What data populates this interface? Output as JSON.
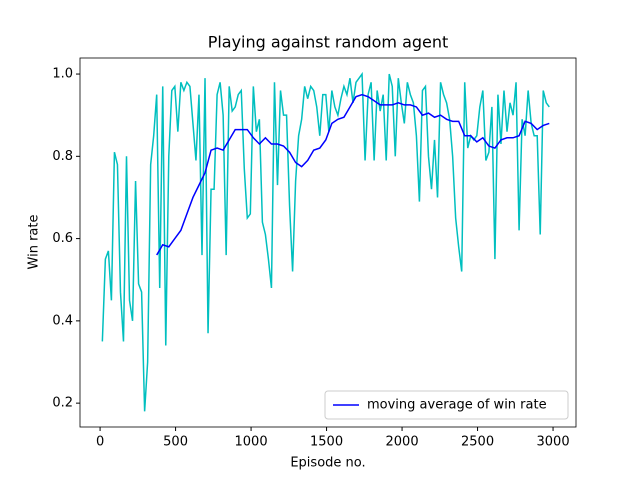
{
  "chart_data": {
    "type": "line",
    "title": "Playing against random agent",
    "xlabel": "Episode no.",
    "ylabel": "Win rate",
    "xlim": [
      -133,
      3152
    ],
    "ylim": [
      0.142,
      1.039
    ],
    "xticks": [
      0,
      500,
      1000,
      1500,
      2000,
      2500,
      3000
    ],
    "yticks": [
      0.2,
      0.4,
      0.6,
      0.8,
      {
        "value": 1,
        "label": "1.0"
      }
    ],
    "legend": "lower right",
    "series": [
      {
        "color": "#00bfbf",
        "x": [
          15,
          35,
          55,
          75,
          95,
          115,
          135,
          155,
          175,
          195,
          215,
          235,
          255,
          275,
          295,
          315,
          335,
          355,
          375,
          395,
          415,
          435,
          455,
          475,
          495,
          515,
          535,
          555,
          575,
          595,
          615,
          635,
          655,
          675,
          695,
          715,
          735,
          755,
          775,
          795,
          815,
          835,
          855,
          875,
          895,
          915,
          935,
          955,
          975,
          995,
          1015,
          1035,
          1055,
          1075,
          1095,
          1115,
          1135,
          1155,
          1175,
          1195,
          1215,
          1235,
          1255,
          1275,
          1295,
          1315,
          1335,
          1355,
          1375,
          1395,
          1415,
          1435,
          1455,
          1475,
          1495,
          1515,
          1535,
          1555,
          1575,
          1595,
          1615,
          1635,
          1655,
          1675,
          1695,
          1715,
          1735,
          1755,
          1775,
          1795,
          1815,
          1835,
          1855,
          1875,
          1895,
          1915,
          1935,
          1955,
          1975,
          1995,
          2015,
          2035,
          2055,
          2075,
          2095,
          2115,
          2135,
          2155,
          2175,
          2195,
          2215,
          2235,
          2255,
          2275,
          2295,
          2315,
          2335,
          2355,
          2375,
          2395,
          2415,
          2435,
          2455,
          2475,
          2495,
          2515,
          2535,
          2555,
          2575,
          2595,
          2615,
          2635,
          2655,
          2675,
          2695,
          2715,
          2735,
          2755,
          2775,
          2795,
          2815,
          2835,
          2855,
          2875,
          2895,
          2915,
          2935,
          2955,
          2975
        ],
        "values": [
          0.35,
          0.55,
          0.57,
          0.45,
          0.81,
          0.78,
          0.47,
          0.35,
          0.8,
          0.45,
          0.4,
          0.74,
          0.49,
          0.47,
          0.18,
          0.3,
          0.78,
          0.85,
          0.95,
          0.48,
          0.97,
          0.34,
          0.8,
          0.96,
          0.97,
          0.86,
          0.98,
          0.96,
          0.98,
          0.97,
          0.88,
          0.79,
          0.95,
          0.56,
          0.99,
          0.37,
          0.72,
          0.72,
          0.95,
          0.98,
          0.9,
          0.56,
          0.97,
          0.91,
          0.92,
          0.95,
          0.96,
          0.77,
          0.65,
          0.66,
          0.97,
          0.86,
          0.89,
          0.64,
          0.61,
          0.55,
          0.48,
          0.98,
          0.73,
          0.96,
          0.9,
          0.9,
          0.68,
          0.52,
          0.74,
          0.85,
          0.89,
          0.97,
          0.94,
          0.97,
          0.96,
          0.92,
          0.85,
          0.95,
          0.95,
          0.86,
          0.96,
          0.92,
          0.9,
          0.94,
          0.97,
          0.95,
          0.99,
          0.93,
          0.98,
          0.99,
          1.0,
          0.79,
          0.95,
          0.98,
          0.79,
          0.96,
          0.91,
          0.95,
          0.79,
          1.0,
          0.97,
          0.8,
          0.99,
          0.93,
          0.88,
          0.98,
          0.95,
          0.93,
          0.85,
          0.69,
          0.96,
          0.97,
          0.8,
          0.72,
          0.84,
          0.7,
          0.98,
          0.95,
          0.93,
          0.89,
          0.8,
          0.65,
          0.58,
          0.52,
          0.98,
          0.82,
          0.85,
          0.84,
          0.85,
          0.92,
          0.96,
          0.79,
          0.81,
          0.92,
          0.55,
          0.95,
          0.83,
          0.96,
          0.86,
          0.93,
          0.9,
          0.98,
          0.62,
          0.89,
          0.85,
          0.96,
          0.88,
          0.85,
          0.85,
          0.61,
          0.96,
          0.93,
          0.92
        ]
      },
      {
        "name": "moving average of win rate",
        "color": "#0000ff",
        "x": [
          375,
          415,
          455,
          495,
          535,
          575,
          615,
          655,
          695,
          735,
          775,
          815,
          855,
          895,
          935,
          975,
          1015,
          1055,
          1095,
          1135,
          1175,
          1215,
          1255,
          1295,
          1335,
          1375,
          1415,
          1455,
          1495,
          1535,
          1575,
          1615,
          1655,
          1695,
          1735,
          1775,
          1815,
          1855,
          1895,
          1935,
          1975,
          2015,
          2055,
          2095,
          2135,
          2175,
          2215,
          2255,
          2295,
          2335,
          2375,
          2415,
          2455,
          2495,
          2535,
          2575,
          2615,
          2655,
          2695,
          2735,
          2775,
          2815,
          2855,
          2895,
          2935,
          2975
        ],
        "values": [
          0.56,
          0.585,
          0.58,
          0.6,
          0.62,
          0.66,
          0.7,
          0.73,
          0.76,
          0.815,
          0.82,
          0.815,
          0.84,
          0.865,
          0.865,
          0.865,
          0.845,
          0.83,
          0.845,
          0.83,
          0.83,
          0.825,
          0.81,
          0.785,
          0.775,
          0.79,
          0.815,
          0.82,
          0.84,
          0.88,
          0.89,
          0.895,
          0.92,
          0.945,
          0.95,
          0.945,
          0.935,
          0.925,
          0.925,
          0.925,
          0.93,
          0.925,
          0.925,
          0.92,
          0.9,
          0.905,
          0.895,
          0.9,
          0.89,
          0.885,
          0.885,
          0.85,
          0.85,
          0.835,
          0.845,
          0.825,
          0.82,
          0.84,
          0.845,
          0.845,
          0.85,
          0.885,
          0.88,
          0.865,
          0.875,
          0.88
        ]
      }
    ]
  }
}
